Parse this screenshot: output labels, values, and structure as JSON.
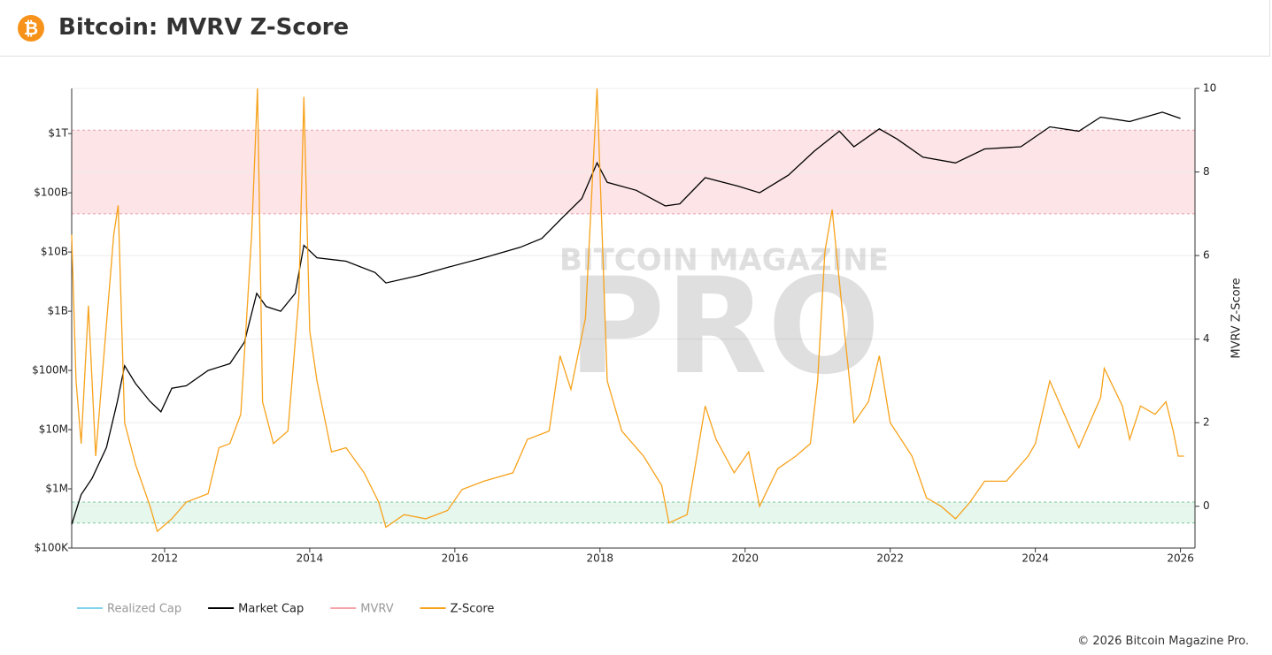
{
  "chart_data": {
    "type": "line",
    "title": "Bitcoin: MVRV Z-Score",
    "copyright": "© 2026 Bitcoin Magazine Pro.",
    "watermark": [
      "BITCOIN MAGAZINE",
      "PRO"
    ],
    "y2_label": "MVRV Z-Score",
    "log_y": true,
    "grid": true,
    "xlim": [
      2010.72,
      2026.2
    ],
    "xticks": [
      2012,
      2014,
      2016,
      2018,
      2020,
      2022,
      2024,
      2026
    ],
    "ylim": [
      100000,
      5800000000000
    ],
    "yticks": [
      {
        "value": 100000,
        "label": "$100K"
      },
      {
        "value": 1000000,
        "label": "$1M"
      },
      {
        "value": 10000000,
        "label": "$10M"
      },
      {
        "value": 100000000,
        "label": "$100M"
      },
      {
        "value": 1000000000,
        "label": "$1B"
      },
      {
        "value": 10000000000,
        "label": "$10B"
      },
      {
        "value": 100000000000,
        "label": "$100B"
      },
      {
        "value": 1000000000000,
        "label": "$1T"
      }
    ],
    "y2lim": [
      -1,
      10
    ],
    "y2ticks": [
      0,
      2,
      4,
      6,
      8,
      10
    ],
    "zones": [
      {
        "range": [
          7,
          9
        ],
        "color": "#fde4e6",
        "edge": "#e8a0a8"
      },
      {
        "range": [
          -0.4,
          0.1
        ],
        "color": "#e6f7ee",
        "edge": "#7cc79a"
      }
    ],
    "hidden_series": [
      {
        "name": "Realized Cap",
        "color": "#7fd3ea"
      },
      {
        "name": "MVRV",
        "color": "#f4a3a8"
      }
    ],
    "series": [
      {
        "name": "Market Cap",
        "color": "#000000",
        "axis": "y",
        "x": [
          2010.72,
          2010.85,
          2011.0,
          2011.2,
          2011.35,
          2011.45,
          2011.6,
          2011.8,
          2011.95,
          2012.1,
          2012.3,
          2012.6,
          2012.9,
          2013.1,
          2013.27,
          2013.4,
          2013.6,
          2013.8,
          2013.92,
          2014.1,
          2014.5,
          2014.9,
          2015.05,
          2015.5,
          2015.9,
          2016.4,
          2016.9,
          2017.2,
          2017.5,
          2017.75,
          2017.96,
          2018.1,
          2018.5,
          2018.9,
          2019.1,
          2019.45,
          2019.9,
          2020.2,
          2020.6,
          2020.95,
          2021.3,
          2021.5,
          2021.85,
          2022.1,
          2022.45,
          2022.9,
          2023.3,
          2023.8,
          2024.2,
          2024.6,
          2024.9,
          2025.3,
          2025.75,
          2026.0
        ],
        "values": [
          250000,
          800000,
          1500000,
          5000000,
          30000000,
          120000000,
          60000000,
          30000000,
          20000000,
          50000000,
          55000000,
          100000000,
          130000000,
          300000000,
          2000000000,
          1200000000,
          1000000000,
          2000000000,
          13000000000,
          8000000000,
          7000000000,
          4500000000,
          3000000000,
          4000000000,
          5500000000,
          8000000000,
          12000000000,
          17000000000,
          40000000000,
          80000000000,
          320000000000,
          150000000000,
          110000000000,
          60000000000,
          65000000000,
          180000000000,
          130000000000,
          100000000000,
          200000000000,
          500000000000,
          1100000000000,
          600000000000,
          1200000000000,
          800000000000,
          400000000000,
          320000000000,
          550000000000,
          600000000000,
          1300000000000,
          1100000000000,
          1900000000000,
          1600000000000,
          2300000000000,
          1800000000000
        ]
      },
      {
        "name": "Z-Score",
        "color": "#f7a21b",
        "axis": "y2",
        "x": [
          2010.72,
          2010.78,
          2010.85,
          2010.95,
          2011.05,
          2011.3,
          2011.36,
          2011.45,
          2011.6,
          2011.8,
          2011.9,
          2012.1,
          2012.3,
          2012.6,
          2012.75,
          2012.9,
          2013.05,
          2013.2,
          2013.28,
          2013.35,
          2013.5,
          2013.7,
          2013.85,
          2013.92,
          2014.0,
          2014.1,
          2014.3,
          2014.5,
          2014.75,
          2014.95,
          2015.05,
          2015.3,
          2015.6,
          2015.9,
          2016.1,
          2016.4,
          2016.8,
          2017.0,
          2017.3,
          2017.45,
          2017.6,
          2017.8,
          2017.96,
          2018.1,
          2018.3,
          2018.6,
          2018.85,
          2018.95,
          2019.2,
          2019.45,
          2019.6,
          2019.85,
          2020.05,
          2020.2,
          2020.45,
          2020.7,
          2020.9,
          2021.0,
          2021.1,
          2021.2,
          2021.35,
          2021.5,
          2021.7,
          2021.85,
          2022.0,
          2022.3,
          2022.5,
          2022.7,
          2022.9,
          2023.1,
          2023.3,
          2023.6,
          2023.9,
          2024.0,
          2024.2,
          2024.4,
          2024.6,
          2024.9,
          2024.95,
          2025.2,
          2025.3,
          2025.45,
          2025.65,
          2025.8,
          2025.9,
          2025.97,
          2026.05
        ],
        "values": [
          6.5,
          3,
          1.5,
          4.8,
          1.2,
          6.5,
          7.2,
          2,
          1.0,
          0,
          -0.6,
          -0.3,
          0.1,
          0.3,
          1.4,
          1.5,
          2.2,
          6.5,
          10,
          2.5,
          1.5,
          1.8,
          5,
          9.8,
          4.2,
          3,
          1.3,
          1.4,
          0.8,
          0.1,
          -0.5,
          -0.2,
          -0.3,
          -0.1,
          0.4,
          0.6,
          0.8,
          1.6,
          1.8,
          3.6,
          2.8,
          4.5,
          10,
          3,
          1.8,
          1.2,
          0.5,
          -0.4,
          -0.2,
          2.4,
          1.6,
          0.8,
          1.3,
          0.0,
          0.9,
          1.2,
          1.5,
          3,
          6.1,
          7.1,
          4.5,
          2.0,
          2.5,
          3.6,
          2.0,
          1.2,
          0.2,
          0.0,
          -0.3,
          0.1,
          0.6,
          0.6,
          1.2,
          1.5,
          3.0,
          2.2,
          1.4,
          2.6,
          3.3,
          2.4,
          1.6,
          2.4,
          2.2,
          2.5,
          1.8,
          1.2,
          1.2
        ]
      }
    ]
  }
}
